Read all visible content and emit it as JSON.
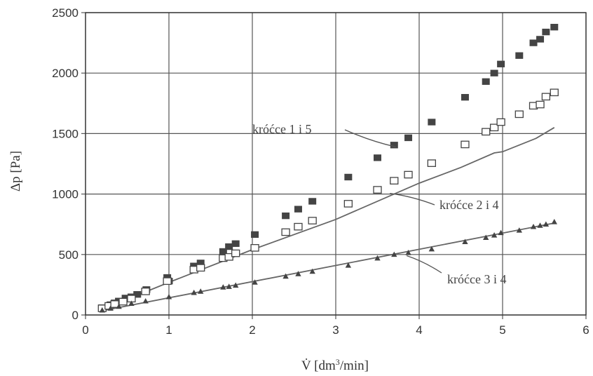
{
  "chart_data": {
    "type": "scatter",
    "title": "",
    "xlabel_prefix": "V̇  [dm",
    "xlabel_sup": "3",
    "xlabel_suffix": "/min]",
    "ylabel": "Δp [Pa]",
    "xlim": [
      0,
      6
    ],
    "ylim": [
      0,
      2500
    ],
    "x_ticks": [
      "0",
      "1",
      "2",
      "3",
      "4",
      "5",
      "6"
    ],
    "y_ticks": [
      "0",
      "500",
      "1000",
      "1500",
      "2000",
      "2500"
    ],
    "grid": true,
    "series": [
      {
        "name": "króćce 1 i 5",
        "marker": "filled-square",
        "color": "#444444",
        "points": [
          [
            0.2,
            60
          ],
          [
            0.3,
            85
          ],
          [
            0.35,
            100
          ],
          [
            0.4,
            115
          ],
          [
            0.48,
            140
          ],
          [
            0.55,
            150
          ],
          [
            0.62,
            170
          ],
          [
            0.73,
            210
          ],
          [
            0.98,
            310
          ],
          [
            1.0,
            280
          ],
          [
            1.3,
            405
          ],
          [
            1.38,
            430
          ],
          [
            1.65,
            525
          ],
          [
            1.72,
            565
          ],
          [
            1.8,
            590
          ],
          [
            2.03,
            665
          ],
          [
            2.4,
            820
          ],
          [
            2.55,
            875
          ],
          [
            2.72,
            940
          ],
          [
            3.15,
            1140
          ],
          [
            3.5,
            1300
          ],
          [
            3.7,
            1405
          ],
          [
            3.87,
            1465
          ],
          [
            4.15,
            1595
          ],
          [
            4.55,
            1800
          ],
          [
            4.8,
            1930
          ],
          [
            4.9,
            2000
          ],
          [
            4.98,
            2075
          ],
          [
            5.2,
            2145
          ],
          [
            5.37,
            2250
          ],
          [
            5.45,
            2280
          ],
          [
            5.52,
            2340
          ],
          [
            5.62,
            2380
          ]
        ]
      },
      {
        "name": "króćce 2 i 4",
        "marker": "open-square",
        "color": "#444444",
        "points": [
          [
            0.2,
            55
          ],
          [
            0.28,
            75
          ],
          [
            0.35,
            90
          ],
          [
            0.45,
            110
          ],
          [
            0.55,
            135
          ],
          [
            0.72,
            195
          ],
          [
            0.98,
            280
          ],
          [
            1.3,
            375
          ],
          [
            1.38,
            390
          ],
          [
            1.65,
            470
          ],
          [
            1.72,
            480
          ],
          [
            1.8,
            510
          ],
          [
            2.03,
            555
          ],
          [
            2.4,
            685
          ],
          [
            2.55,
            730
          ],
          [
            2.72,
            780
          ],
          [
            3.15,
            920
          ],
          [
            3.5,
            1035
          ],
          [
            3.7,
            1110
          ],
          [
            3.87,
            1160
          ],
          [
            4.15,
            1255
          ],
          [
            4.55,
            1410
          ],
          [
            4.8,
            1515
          ],
          [
            4.9,
            1550
          ],
          [
            4.98,
            1595
          ],
          [
            5.2,
            1660
          ],
          [
            5.37,
            1730
          ],
          [
            5.45,
            1740
          ],
          [
            5.52,
            1805
          ],
          [
            5.62,
            1840
          ]
        ]
      },
      {
        "name": "króćce 3 i 4",
        "marker": "filled-triangle",
        "color": "#444444",
        "points": [
          [
            0.2,
            40
          ],
          [
            0.3,
            55
          ],
          [
            0.4,
            70
          ],
          [
            0.55,
            95
          ],
          [
            0.72,
            115
          ],
          [
            1.0,
            150
          ],
          [
            1.3,
            185
          ],
          [
            1.38,
            195
          ],
          [
            1.65,
            230
          ],
          [
            1.72,
            235
          ],
          [
            1.8,
            245
          ],
          [
            2.03,
            270
          ],
          [
            2.4,
            320
          ],
          [
            2.55,
            340
          ],
          [
            2.72,
            360
          ],
          [
            3.15,
            410
          ],
          [
            3.5,
            470
          ],
          [
            3.7,
            500
          ],
          [
            3.87,
            515
          ],
          [
            4.15,
            545
          ],
          [
            4.55,
            605
          ],
          [
            4.8,
            640
          ],
          [
            4.9,
            660
          ],
          [
            4.98,
            680
          ],
          [
            5.2,
            700
          ],
          [
            5.37,
            730
          ],
          [
            5.45,
            740
          ],
          [
            5.52,
            750
          ],
          [
            5.62,
            770
          ]
        ]
      }
    ],
    "fit_lines": [
      {
        "for": "króćce 2 i 4",
        "points": [
          [
            0.2,
            45
          ],
          [
            1.0,
            270
          ],
          [
            2.0,
            540
          ],
          [
            3.0,
            790
          ],
          [
            4.0,
            1090
          ],
          [
            4.5,
            1220
          ],
          [
            4.9,
            1340
          ],
          [
            5.0,
            1350
          ],
          [
            5.4,
            1460
          ],
          [
            5.62,
            1550
          ]
        ]
      },
      {
        "for": "króćce 3 i 4",
        "points": [
          [
            0.2,
            35
          ],
          [
            5.62,
            760
          ]
        ]
      }
    ],
    "annotations": [
      {
        "text": "króćce 1 i 5",
        "at": [
          3.72,
          1390
        ]
      },
      {
        "text": "króćce 2 i 4",
        "at": [
          3.65,
          1005
        ]
      },
      {
        "text": "króćce 3 i 4",
        "at": [
          3.85,
          490
        ]
      }
    ]
  }
}
